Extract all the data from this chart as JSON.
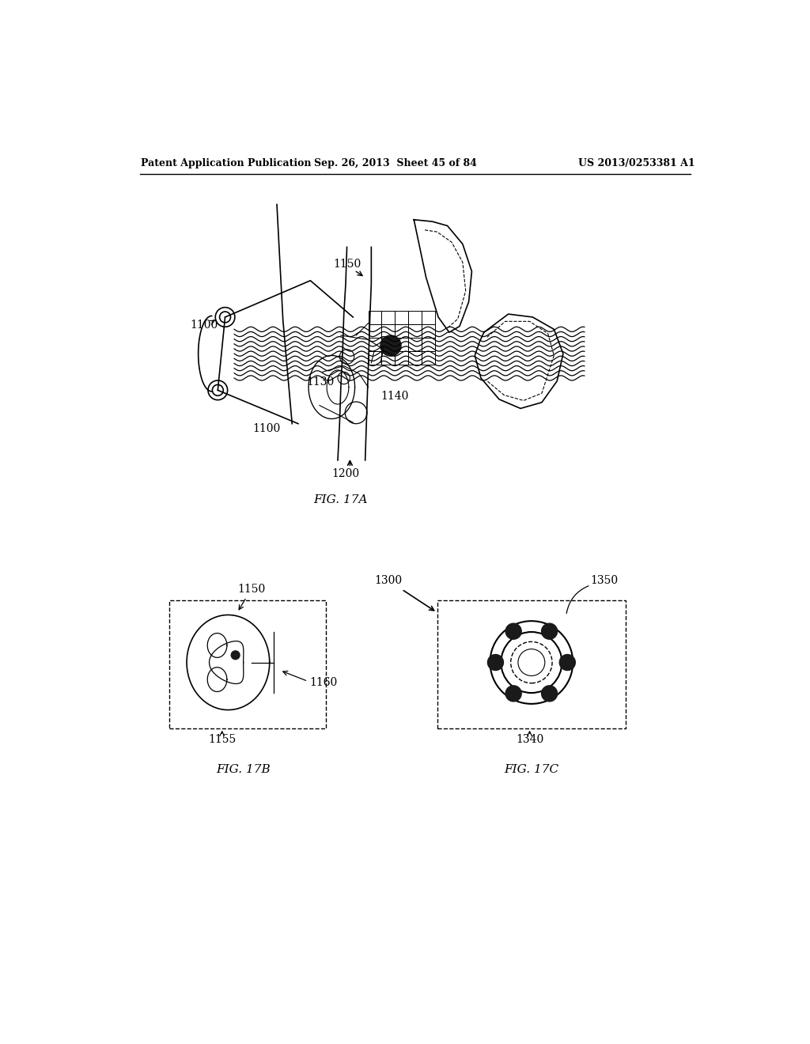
{
  "title_left": "Patent Application Publication",
  "title_center": "Sep. 26, 2013  Sheet 45 of 84",
  "title_right": "US 2013/0253381 A1",
  "fig17a_label": "FIG. 17A",
  "fig17b_label": "FIG. 17B",
  "fig17c_label": "FIG. 17C",
  "label_1100a": "1100",
  "label_1100b": "1100",
  "label_1150": "1150",
  "label_1130": "1130",
  "label_1140": "1140",
  "label_1200": "1200",
  "label_1150b": "1150",
  "label_1155": "1155",
  "label_1160": "1160",
  "label_1300": "1300",
  "label_1350": "1350",
  "label_1340": "1340",
  "bg_color": "#ffffff",
  "line_color": "#000000",
  "dark_fill": "#1a1a1a"
}
